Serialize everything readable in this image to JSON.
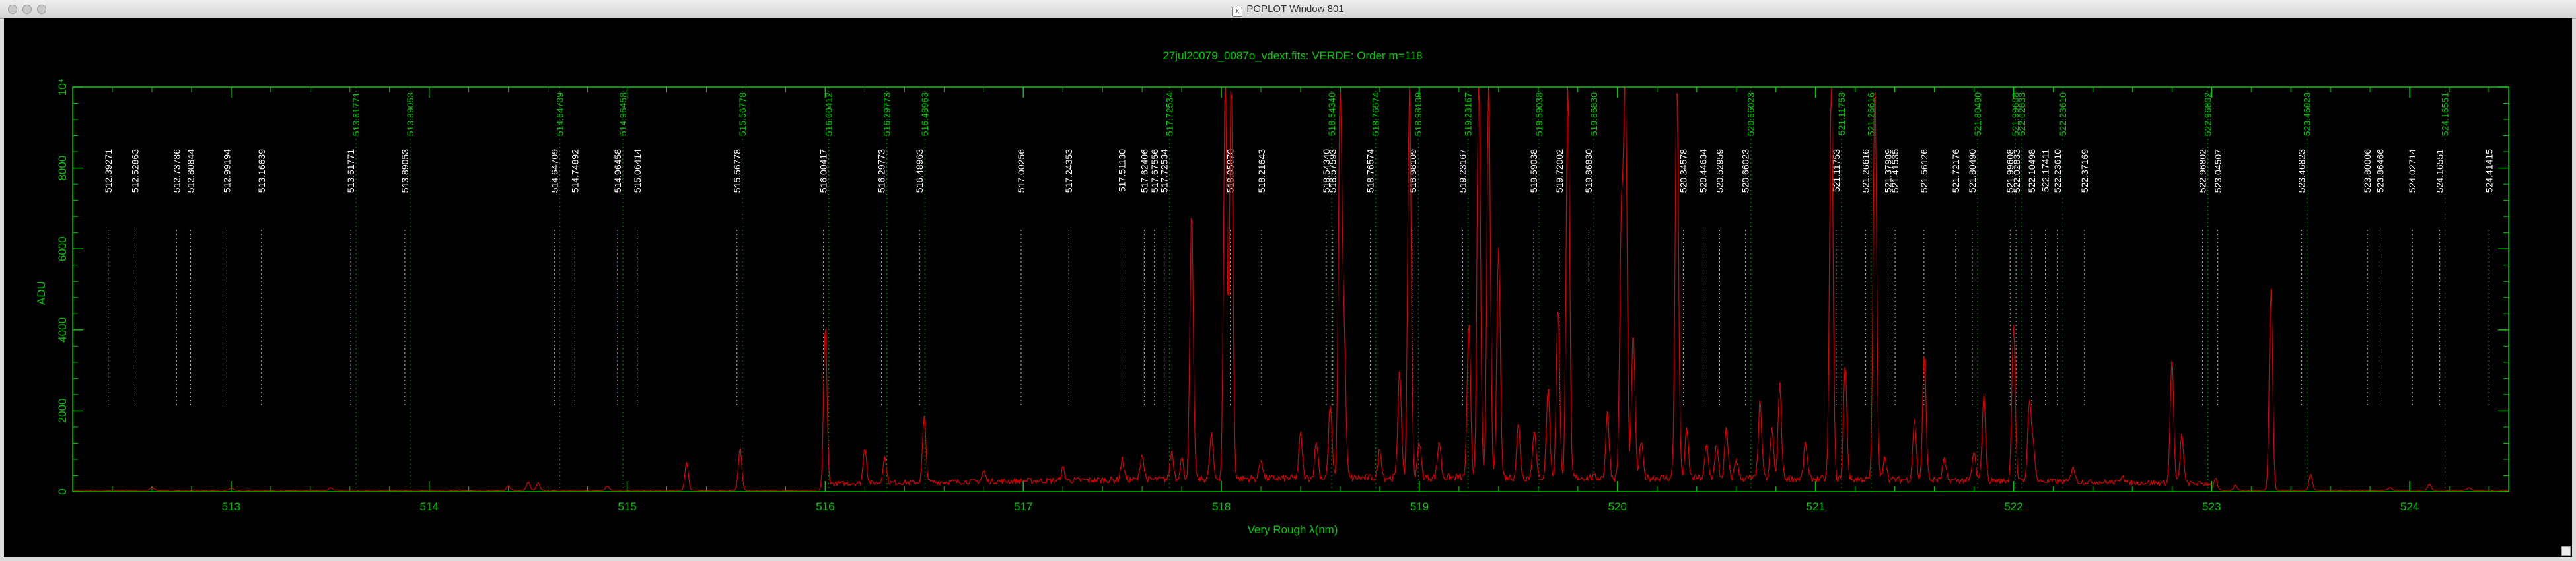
{
  "window": {
    "title": "PGPLOT Window 801",
    "controls": [
      "close",
      "minimize",
      "zoom"
    ]
  },
  "colors": {
    "frame": "#00c800",
    "spectrum": "#dd0000",
    "line_white": "#ffffff",
    "line_green": "#00c800",
    "background": "#000000"
  },
  "chart_data": {
    "type": "line",
    "title": "27jul20079_0087o_vdext.fits: VERDE: Order m=118",
    "xlabel": "Very Rough λ(nm)",
    "ylabel": "ADU",
    "xlim": [
      512.2,
      524.5
    ],
    "ylim": [
      0,
      10000
    ],
    "x_ticks": [
      513,
      514,
      515,
      516,
      517,
      518,
      519,
      520,
      521,
      522,
      523,
      524
    ],
    "y_ticks": [
      {
        "value": 0,
        "label": "0"
      },
      {
        "value": 2000,
        "label": "2000"
      },
      {
        "value": 4000,
        "label": "4000"
      },
      {
        "value": 6000,
        "label": "6000"
      },
      {
        "value": 8000,
        "label": "8000"
      },
      {
        "value": 10000,
        "label": "10⁴"
      }
    ],
    "line_ids": [
      {
        "x": 512.39271,
        "label": "512.39271",
        "color": "white"
      },
      {
        "x": 512.52863,
        "label": "512.52863",
        "color": "white"
      },
      {
        "x": 512.73786,
        "label": "512.73786",
        "color": "white"
      },
      {
        "x": 512.80844,
        "label": "512.80844",
        "color": "white"
      },
      {
        "x": 512.99194,
        "label": "512.99194",
        "color": "white"
      },
      {
        "x": 513.16639,
        "label": "513.16639",
        "color": "white"
      },
      {
        "x": 513.61771,
        "label": "513.61771",
        "color": "white"
      },
      {
        "x": 513.61771,
        "label": "513.61771",
        "color": "green"
      },
      {
        "x": 513.89053,
        "label": "513.89053",
        "color": "white"
      },
      {
        "x": 513.89053,
        "label": "513.89053",
        "color": "green"
      },
      {
        "x": 514.64709,
        "label": "514.64709",
        "color": "white"
      },
      {
        "x": 514.64709,
        "label": "514.64709",
        "color": "green"
      },
      {
        "x": 514.74892,
        "label": "514.74892",
        "color": "white"
      },
      {
        "x": 514.96458,
        "label": "514.96458",
        "color": "white"
      },
      {
        "x": 514.96458,
        "label": "514.96458",
        "color": "green"
      },
      {
        "x": 515.06414,
        "label": "515.06414",
        "color": "white"
      },
      {
        "x": 515.56778,
        "label": "515.56778",
        "color": "white"
      },
      {
        "x": 515.56778,
        "label": "515.56778",
        "color": "green"
      },
      {
        "x": 516.00417,
        "label": "516.00417",
        "color": "white"
      },
      {
        "x": 516.00412,
        "label": "516.00412",
        "color": "green"
      },
      {
        "x": 516.29773,
        "label": "516.29773",
        "color": "white"
      },
      {
        "x": 516.29773,
        "label": "516.29773",
        "color": "green"
      },
      {
        "x": 516.48963,
        "label": "516.48963",
        "color": "white"
      },
      {
        "x": 516.48963,
        "label": "516.48963",
        "color": "green"
      },
      {
        "x": 517.00256,
        "label": "517.00256",
        "color": "white"
      },
      {
        "x": 517.24353,
        "label": "517.24353",
        "color": "white"
      },
      {
        "x": 517.5113,
        "label": "517.51130",
        "color": "white"
      },
      {
        "x": 517.62406,
        "label": "517.62406",
        "color": "white"
      },
      {
        "x": 517.67556,
        "label": "517.67556",
        "color": "white"
      },
      {
        "x": 517.72534,
        "label": "517.72534",
        "color": "white"
      },
      {
        "x": 517.72534,
        "label": "517.72534",
        "color": "green"
      },
      {
        "x": 518.0587,
        "label": "518.05870",
        "color": "white"
      },
      {
        "x": 518.21643,
        "label": "518.21643",
        "color": "white"
      },
      {
        "x": 518.5434,
        "label": "518.54340",
        "color": "white"
      },
      {
        "x": 518.5434,
        "label": "518.54340",
        "color": "green"
      },
      {
        "x": 518.57593,
        "label": "518.57593",
        "color": "white"
      },
      {
        "x": 518.76574,
        "label": "518.76574",
        "color": "white"
      },
      {
        "x": 518.76574,
        "label": "518.76574",
        "color": "green"
      },
      {
        "x": 518.98109,
        "label": "518.98109",
        "color": "white"
      },
      {
        "x": 518.98109,
        "label": "518.98109",
        "color": "green"
      },
      {
        "x": 519.23167,
        "label": "519.23167",
        "color": "white"
      },
      {
        "x": 519.23167,
        "label": "519.23167",
        "color": "green"
      },
      {
        "x": 519.59038,
        "label": "519.59038",
        "color": "white"
      },
      {
        "x": 519.59038,
        "label": "519.59038",
        "color": "green"
      },
      {
        "x": 519.72002,
        "label": "519.72002",
        "color": "white"
      },
      {
        "x": 519.8683,
        "label": "519.86830",
        "color": "white"
      },
      {
        "x": 519.8683,
        "label": "519.86830",
        "color": "green"
      },
      {
        "x": 520.34578,
        "label": "520.34578",
        "color": "white"
      },
      {
        "x": 520.44634,
        "label": "520.44634",
        "color": "white"
      },
      {
        "x": 520.52959,
        "label": "520.52959",
        "color": "white"
      },
      {
        "x": 520.66023,
        "label": "520.66023",
        "color": "white"
      },
      {
        "x": 520.66023,
        "label": "520.66023",
        "color": "green"
      },
      {
        "x": 521.11753,
        "label": "521.11753",
        "color": "white"
      },
      {
        "x": 521.11753,
        "label": "521.11753",
        "color": "green"
      },
      {
        "x": 521.26616,
        "label": "521.26616",
        "color": "white"
      },
      {
        "x": 521.26616,
        "label": "521.26616",
        "color": "green"
      },
      {
        "x": 521.37989,
        "label": "521.37989",
        "color": "white"
      },
      {
        "x": 521.41535,
        "label": "521.41535",
        "color": "white"
      },
      {
        "x": 521.56126,
        "label": "521.56126",
        "color": "white"
      },
      {
        "x": 521.72176,
        "label": "521.72176",
        "color": "white"
      },
      {
        "x": 521.8049,
        "label": "521.80490",
        "color": "white"
      },
      {
        "x": 521.8049,
        "label": "521.80490",
        "color": "green"
      },
      {
        "x": 521.99608,
        "label": "521.99608",
        "color": "white"
      },
      {
        "x": 521.99608,
        "label": "521.99608",
        "color": "green"
      },
      {
        "x": 522.02833,
        "label": "522.02833",
        "color": "white"
      },
      {
        "x": 522.02833,
        "label": "522.02833",
        "color": "green"
      },
      {
        "x": 522.10498,
        "label": "522.10498",
        "color": "white"
      },
      {
        "x": 522.17411,
        "label": "522.17411",
        "color": "white"
      },
      {
        "x": 522.2361,
        "label": "522.23610",
        "color": "white"
      },
      {
        "x": 522.2361,
        "label": "522.23610",
        "color": "green"
      },
      {
        "x": 522.37169,
        "label": "522.37169",
        "color": "white"
      },
      {
        "x": 522.96802,
        "label": "522.96802",
        "color": "white"
      },
      {
        "x": 522.96802,
        "label": "522.96802",
        "color": "green"
      },
      {
        "x": 523.04507,
        "label": "523.04507",
        "color": "white"
      },
      {
        "x": 523.46823,
        "label": "523.46823",
        "color": "white"
      },
      {
        "x": 523.46823,
        "label": "523.46823",
        "color": "green"
      },
      {
        "x": 523.80006,
        "label": "523.80006",
        "color": "white"
      },
      {
        "x": 523.86466,
        "label": "523.86466",
        "color": "white"
      },
      {
        "x": 524.02714,
        "label": "524.02714",
        "color": "white"
      },
      {
        "x": 524.16551,
        "label": "524.16551",
        "color": "white"
      },
      {
        "x": 524.16551,
        "label": "524.16551",
        "color": "green"
      },
      {
        "x": 524.41415,
        "label": "524.41415",
        "color": "white"
      }
    ],
    "series": [
      {
        "name": "spectrum",
        "peaks": [
          [
            512.6,
            80
          ],
          [
            513.0,
            60
          ],
          [
            513.5,
            70
          ],
          [
            514.4,
            120
          ],
          [
            514.5,
            210
          ],
          [
            514.55,
            180
          ],
          [
            514.9,
            110
          ],
          [
            515.3,
            700
          ],
          [
            515.57,
            1050
          ],
          [
            516.0,
            4000
          ],
          [
            516.2,
            900
          ],
          [
            516.3,
            650
          ],
          [
            516.5,
            1600
          ],
          [
            516.8,
            260
          ],
          [
            517.2,
            300
          ],
          [
            517.5,
            500
          ],
          [
            517.6,
            650
          ],
          [
            517.75,
            700
          ],
          [
            517.8,
            500
          ],
          [
            517.85,
            6600
          ],
          [
            517.95,
            1100
          ],
          [
            518.02,
            9900
          ],
          [
            518.05,
            9900
          ],
          [
            518.2,
            500
          ],
          [
            518.4,
            1100
          ],
          [
            518.48,
            900
          ],
          [
            518.55,
            1800
          ],
          [
            518.6,
            9900
          ],
          [
            518.62,
            3500
          ],
          [
            518.8,
            700
          ],
          [
            518.9,
            2700
          ],
          [
            518.95,
            9900
          ],
          [
            519.0,
            900
          ],
          [
            519.1,
            900
          ],
          [
            519.25,
            3800
          ],
          [
            519.3,
            9900
          ],
          [
            519.35,
            9900
          ],
          [
            519.4,
            5800
          ],
          [
            519.5,
            1300
          ],
          [
            519.58,
            1200
          ],
          [
            519.65,
            2200
          ],
          [
            519.7,
            4200
          ],
          [
            519.75,
            9900
          ],
          [
            519.95,
            1600
          ],
          [
            520.02,
            6200
          ],
          [
            520.04,
            9900
          ],
          [
            520.08,
            3600
          ],
          [
            520.12,
            900
          ],
          [
            520.3,
            9900
          ],
          [
            520.35,
            1200
          ],
          [
            520.45,
            800
          ],
          [
            520.5,
            800
          ],
          [
            520.55,
            1200
          ],
          [
            520.6,
            500
          ],
          [
            520.72,
            1900
          ],
          [
            520.78,
            1200
          ],
          [
            520.82,
            2300
          ],
          [
            520.95,
            900
          ],
          [
            521.08,
            9900
          ],
          [
            521.15,
            2800
          ],
          [
            521.3,
            9900
          ],
          [
            521.35,
            600
          ],
          [
            521.5,
            1500
          ],
          [
            521.55,
            3100
          ],
          [
            521.65,
            500
          ],
          [
            521.8,
            700
          ],
          [
            521.85,
            2100
          ],
          [
            522.0,
            3900
          ],
          [
            522.08,
            2000
          ],
          [
            522.1,
            900
          ],
          [
            522.3,
            400
          ],
          [
            522.55,
            200
          ],
          [
            522.8,
            3100
          ],
          [
            522.85,
            1200
          ],
          [
            523.02,
            300
          ],
          [
            523.12,
            130
          ],
          [
            523.3,
            5000
          ],
          [
            523.5,
            400
          ],
          [
            523.9,
            70
          ],
          [
            524.1,
            150
          ],
          [
            524.3,
            60
          ]
        ]
      }
    ]
  }
}
